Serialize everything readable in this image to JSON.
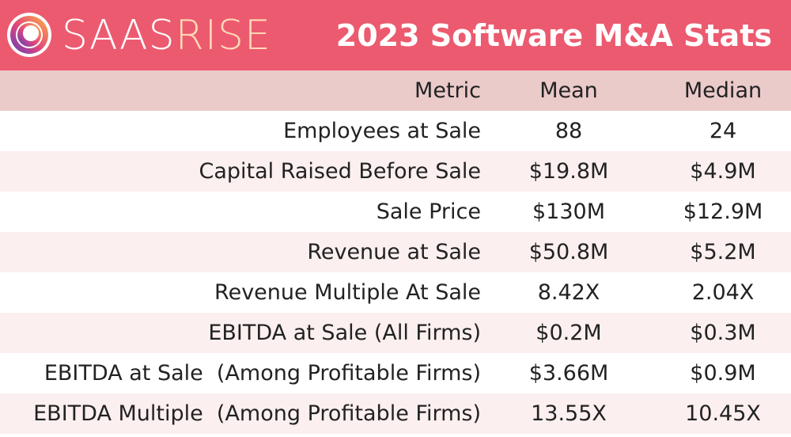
{
  "brand": {
    "name_part1": "SAAS",
    "name_part2": "RISE"
  },
  "title": "2023 Software M&A Stats",
  "colors": {
    "banner": "#ec5a6f",
    "header_row": "#ebcaca",
    "alt_row": "#fcefef",
    "brand_accent": "#ffd9b8"
  },
  "table": {
    "headers": {
      "metric": "Metric",
      "mean": "Mean",
      "median": "Median"
    },
    "rows": [
      {
        "metric": "Employees at Sale",
        "mean": "88",
        "median": "24"
      },
      {
        "metric": "Capital Raised Before Sale",
        "mean": "$19.8M",
        "median": "$4.9M"
      },
      {
        "metric": "Sale Price",
        "mean": "$130M",
        "median": "$12.9M"
      },
      {
        "metric": "Revenue at Sale",
        "mean": "$50.8M",
        "median": "$5.2M"
      },
      {
        "metric": "Revenue Multiple At Sale",
        "mean": "8.42X",
        "median": "2.04X"
      },
      {
        "metric": "EBITDA at Sale (All Firms)",
        "mean": "$0.2M",
        "median": "$0.3M"
      },
      {
        "metric": "EBITDA at Sale  (Among Profitable Firms)",
        "mean": "$3.66M",
        "median": "$0.9M"
      },
      {
        "metric": "EBITDA Multiple  (Among Profitable Firms)",
        "mean": "13.55X",
        "median": "10.45X"
      }
    ]
  }
}
